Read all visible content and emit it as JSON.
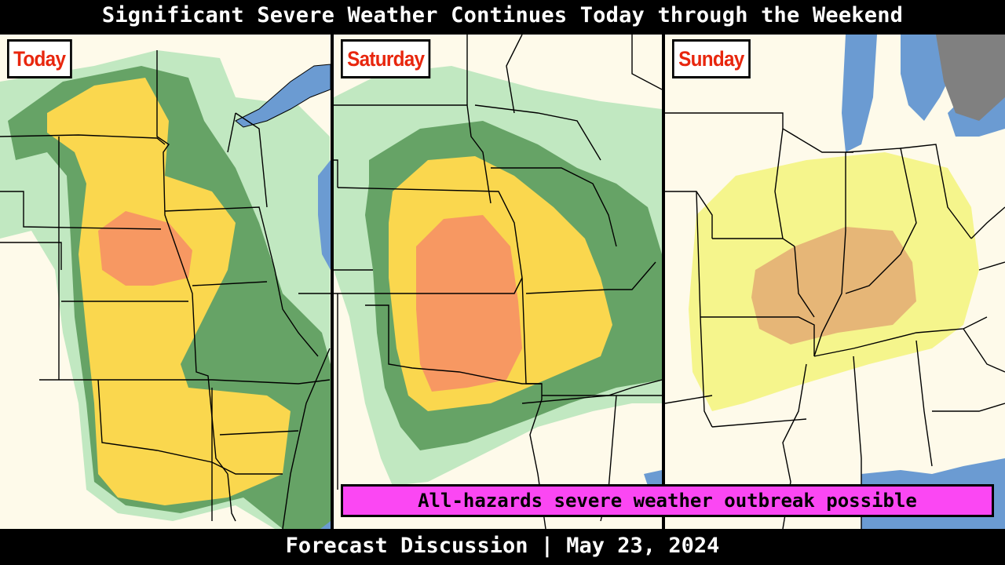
{
  "header": {
    "title": "Significant Severe Weather Continues Today through the Weekend"
  },
  "panels": [
    {
      "label": "Today"
    },
    {
      "label": "Saturday"
    },
    {
      "label": "Sunday"
    }
  ],
  "banner": {
    "text": "All-hazards severe weather outbreak possible"
  },
  "footer": {
    "text": "Forecast Discussion | May 23, 2024"
  },
  "colors": {
    "background": "#000000",
    "land": "#fefaea",
    "water": "#6b9bd2",
    "outside_area": "#808080",
    "risk_light_green": "#c1e8c1",
    "risk_dark_green": "#66a366",
    "risk_yellow": "#fad74e",
    "risk_orange": "#f79862",
    "risk_pale_yellow": "#f5f58c",
    "risk_tan": "#e6b677",
    "label_text": "#e8260e",
    "banner_bg": "#fb47f3"
  }
}
